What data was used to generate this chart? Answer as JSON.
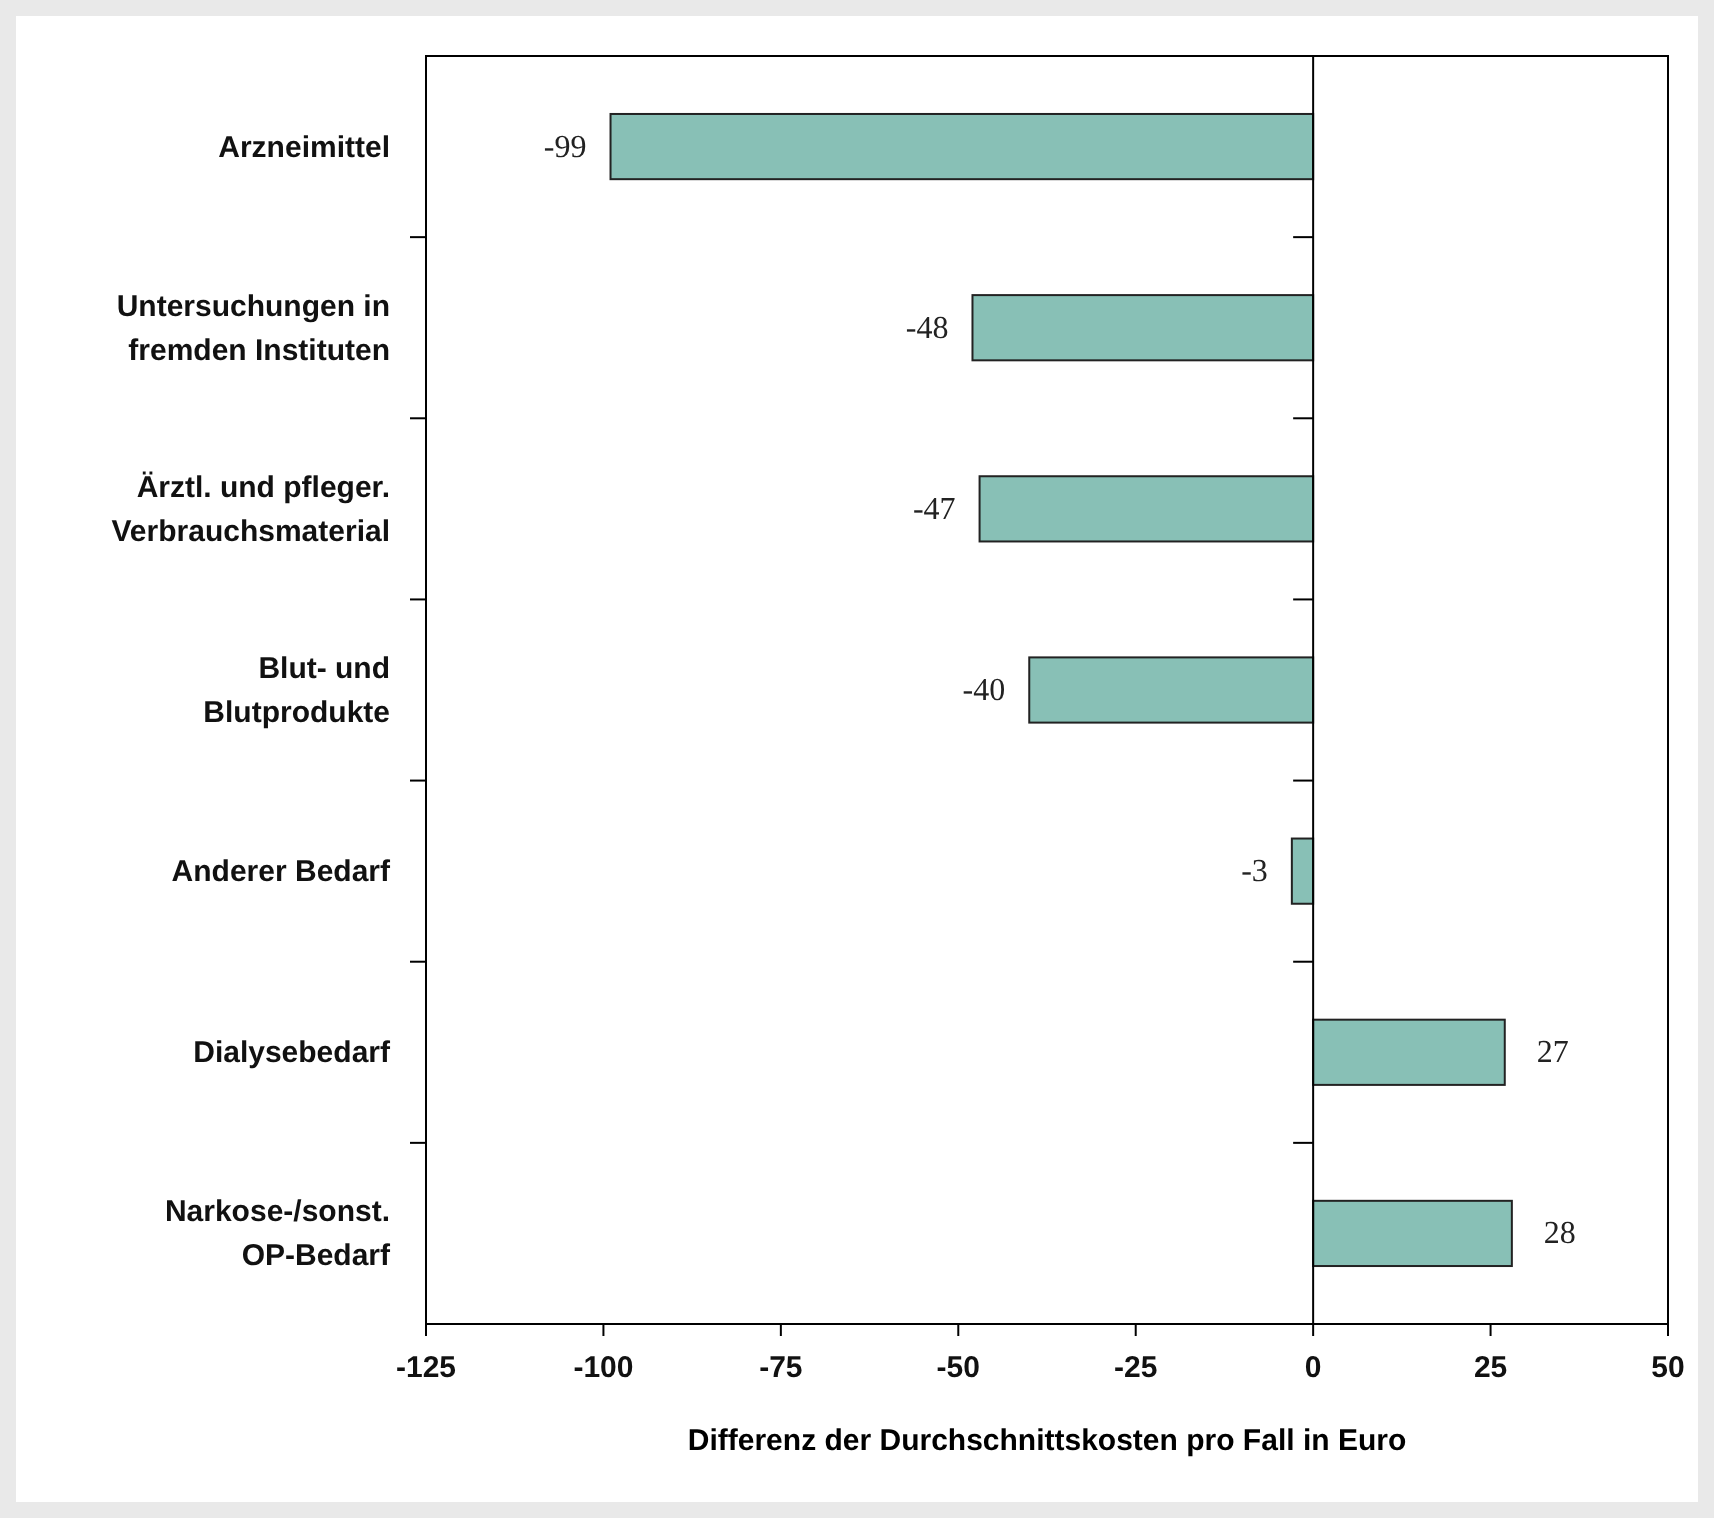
{
  "chart_data": {
    "type": "bar",
    "orientation": "horizontal",
    "xlabel": "Differenz der Durchschnittskosten pro Fall in Euro",
    "categories": [
      "Arzneimittel",
      "Untersuchungen in fremden Instituten",
      "Ärztl. und pfleger. Verbrauchsmaterial",
      "Blut- und Blutprodukte",
      "Anderer Bedarf",
      "Dialysebedarf",
      "Narkose-/sonst. OP-Bedarf"
    ],
    "values": [
      -99,
      -48,
      -47,
      -40,
      -3,
      27,
      28
    ],
    "color": "#88c0b6",
    "data_labels": true,
    "xlim": [
      -125,
      50
    ],
    "xticks": [
      -125,
      -100,
      -75,
      -50,
      -25,
      0,
      25,
      50
    ]
  }
}
